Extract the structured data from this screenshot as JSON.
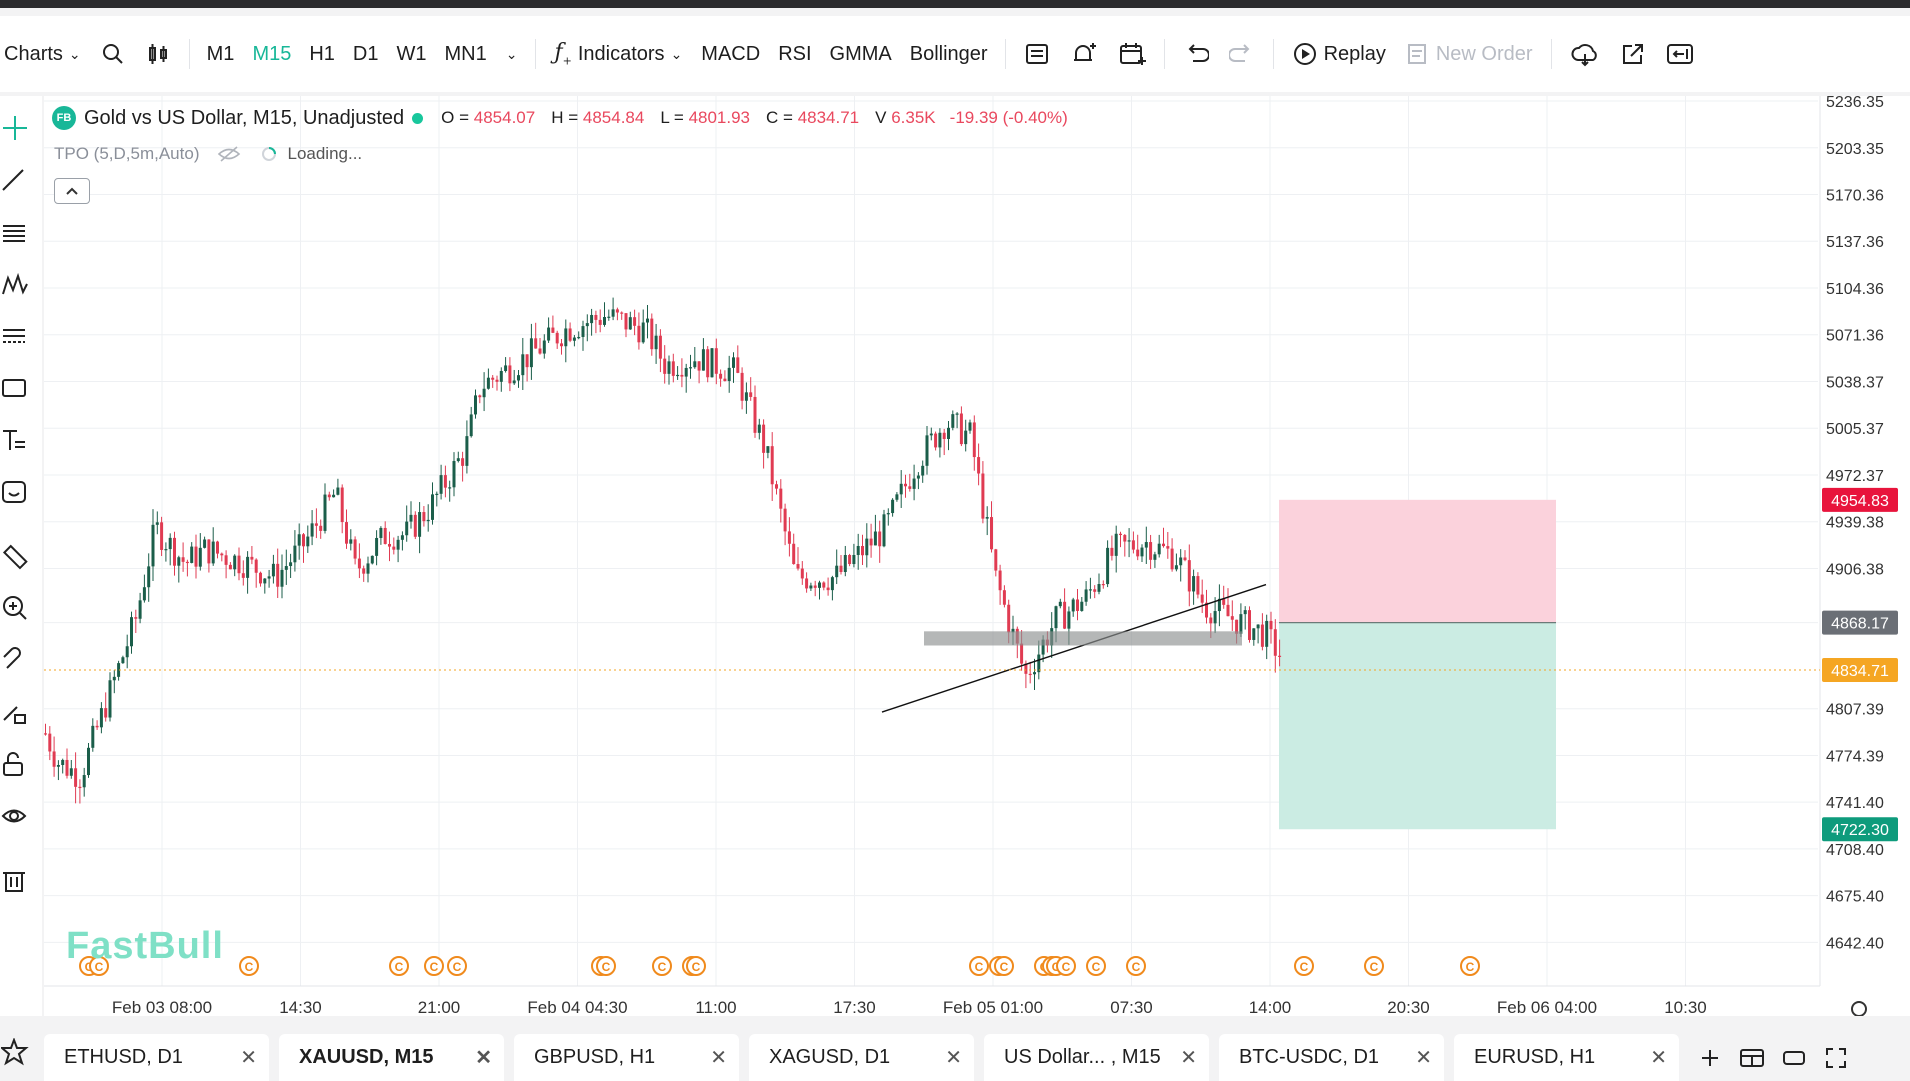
{
  "toolbar": {
    "charts_label": "Charts",
    "timeframes": [
      "M1",
      "M15",
      "H1",
      "D1",
      "W1",
      "MN1"
    ],
    "active_timeframe": "M15",
    "indicators_label": "Indicators",
    "quick_indicators": [
      "MACD",
      "RSI",
      "GMMA",
      "Bollinger"
    ],
    "replay_label": "Replay",
    "new_order_label": "New Order"
  },
  "legend": {
    "badge": "FB",
    "title": "Gold vs US Dollar, M15, Unadjusted",
    "open_label": "O =",
    "open": "4854.07",
    "high_label": "H =",
    "high": "4854.84",
    "low_label": "L =",
    "low": "4801.93",
    "close_label": "C =",
    "close": "4834.71",
    "volume_label": "V",
    "volume": "6.35K",
    "change": "-19.39 (-0.40%)"
  },
  "indicator_row": {
    "name": "TPO (5,D,5m,Auto)",
    "status": "Loading..."
  },
  "watermark": "FastBull",
  "price_axis": {
    "ticks": [
      "5236.35",
      "5203.35",
      "5170.36",
      "5137.36",
      "5104.36",
      "5071.36",
      "5038.37",
      "5005.37",
      "4972.37",
      "4939.38",
      "4906.38",
      "4868.17",
      "4807.39",
      "4774.39",
      "4741.40",
      "4708.40",
      "4675.40",
      "4642.40"
    ],
    "labels": [
      {
        "text": "4954.83",
        "color": "#e8143c"
      },
      {
        "text": "4868.17",
        "color": "#6b6f76"
      },
      {
        "text": "4834.71",
        "color": "#f5a623"
      },
      {
        "text": "4722.30",
        "color": "#0e9b7c"
      }
    ]
  },
  "time_axis": {
    "ticks": [
      "Feb 03 08:00",
      "14:30",
      "21:00",
      "Feb 04 04:30",
      "11:00",
      "17:30",
      "Feb 05 01:00",
      "07:30",
      "14:00",
      "20:30",
      "Feb 06 04:00",
      "10:30"
    ]
  },
  "colors": {
    "up": "#1b5e4a",
    "down": "#e03b52",
    "accent": "#18b798",
    "stop_zone": "#fbd0da",
    "target_zone": "#c8ebe1",
    "event": "#f08a1c"
  },
  "tabs": [
    {
      "label": "ETHUSD, D1"
    },
    {
      "label": "XAUUSD, M15",
      "active": true
    },
    {
      "label": "GBPUSD, H1"
    },
    {
      "label": "XAGUSD, D1"
    },
    {
      "label": "US Dollar... , M15"
    },
    {
      "label": "BTC-USDC, D1"
    },
    {
      "label": "EURUSD, H1"
    }
  ]
}
